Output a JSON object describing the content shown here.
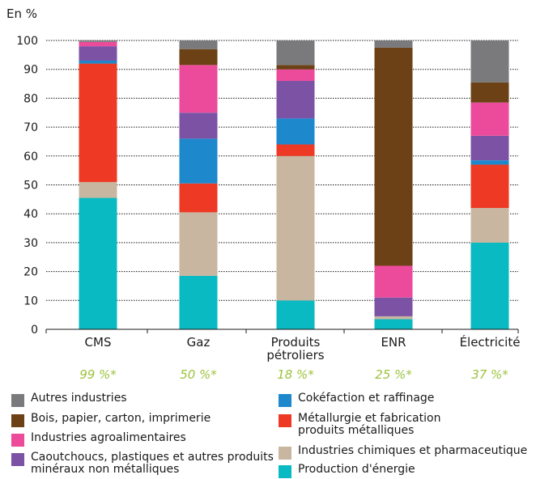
{
  "chart_data": {
    "type": "bar",
    "stacked": true,
    "ylabel": "En %",
    "ylim": [
      0,
      100
    ],
    "yticks": [
      0,
      10,
      20,
      30,
      40,
      50,
      60,
      70,
      80,
      90,
      100
    ],
    "grid": true,
    "categories": [
      "CMS",
      "Gaz",
      "Produits\npétroliers",
      "ENR",
      "Électricité"
    ],
    "category_notes": [
      "99 %*",
      "50 %*",
      "18 %*",
      "25 %*",
      "37 %*"
    ],
    "series": [
      {
        "name": "Production d'énergie",
        "color": "#0ABAC2",
        "values": [
          45.5,
          18.5,
          10.0,
          3.5,
          30.0
        ]
      },
      {
        "name": "Industries chimiques et pharmaceutique",
        "color": "#C8B6A1",
        "values": [
          5.5,
          22.0,
          50.0,
          1.0,
          12.0
        ]
      },
      {
        "name": "Métallurgie et fabrication\nproduits métalliques",
        "color": "#EE3A24",
        "values": [
          41.0,
          10.0,
          4.0,
          0.0,
          15.0
        ]
      },
      {
        "name": "Cokéfaction et raffinage",
        "color": "#1E88CD",
        "values": [
          1.0,
          15.5,
          9.0,
          0.0,
          1.5
        ]
      },
      {
        "name": "Caoutchoucs, plastiques et autres produits\nminéraux non métalliques",
        "color": "#7C52A5",
        "values": [
          5.0,
          9.0,
          13.0,
          6.5,
          8.5
        ]
      },
      {
        "name": "Industries agroalimentaires",
        "color": "#EC4A9A",
        "values": [
          1.5,
          16.5,
          4.0,
          11.0,
          11.5
        ]
      },
      {
        "name": "Bois, papier, carton, imprimerie",
        "color": "#6B4115",
        "values": [
          0.0,
          5.5,
          1.5,
          75.5,
          7.0
        ]
      },
      {
        "name": "Autres industries",
        "color": "#7A7A7C",
        "values": [
          0.5,
          3.0,
          8.5,
          2.5,
          14.5
        ]
      }
    ]
  },
  "legend": {
    "left_column": [
      {
        "label": "Autres industries",
        "color": "#7A7A7C"
      },
      {
        "label": "Bois, papier, carton, imprimerie",
        "color": "#6B4115"
      },
      {
        "label": "Industries agroalimentaires",
        "color": "#EC4A9A"
      },
      {
        "label": "Caoutchoucs, plastiques et autres produits\nminéraux non métalliques",
        "color": "#7C52A5"
      }
    ],
    "right_column": [
      {
        "label": "Cokéfaction et raffinage",
        "color": "#1E88CD"
      },
      {
        "label": "Métallurgie et fabrication\nproduits métalliques",
        "color": "#EE3A24"
      },
      {
        "label": "Industries chimiques et pharmaceutique",
        "color": "#C8B6A1"
      },
      {
        "label": "Production d'énergie",
        "color": "#0ABAC2"
      }
    ]
  },
  "colors": {
    "note_color": "#9BC33B",
    "grid_color": "#1a1a1a"
  }
}
